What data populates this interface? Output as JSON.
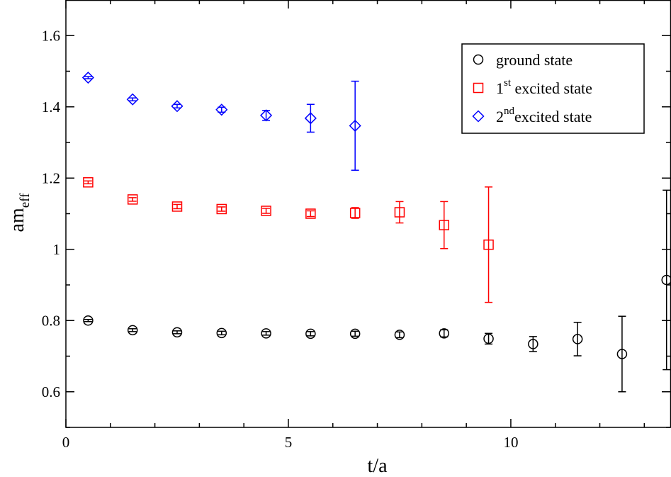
{
  "chart_data": {
    "type": "scatter",
    "xlabel": "t/a",
    "ylabel": {
      "base": "am",
      "sub": "eff"
    },
    "xlim": [
      0,
      13.6
    ],
    "ylim": [
      0.5,
      1.7
    ],
    "xticks": [
      0,
      5,
      10
    ],
    "xtick_labels": [
      "0",
      "5",
      "10"
    ],
    "yticks": [
      0.6,
      0.8,
      1.0,
      1.2,
      1.4,
      1.6
    ],
    "ytick_labels": [
      "0.6",
      "0.8",
      "1",
      "1.2",
      "1.4",
      "1.6"
    ],
    "x_minor_step": 1,
    "y_minor_step": 0.1,
    "grid": false,
    "legend_position": "top-right",
    "series": [
      {
        "name": "ground state",
        "legend": {
          "base": "ground state",
          "sup": "",
          "rest": ""
        },
        "marker": "circle",
        "color": "#000000",
        "x": [
          0.5,
          1.5,
          2.5,
          3.5,
          4.5,
          5.5,
          6.5,
          7.5,
          8.5,
          9.5,
          10.5,
          11.5,
          12.5,
          13.5
        ],
        "y": [
          0.8,
          0.773,
          0.767,
          0.765,
          0.764,
          0.763,
          0.763,
          0.76,
          0.764,
          0.749,
          0.734,
          0.748,
          0.706,
          0.914
        ],
        "err": [
          0.003,
          0.004,
          0.004,
          0.005,
          0.005,
          0.006,
          0.007,
          0.008,
          0.01,
          0.015,
          0.021,
          0.047,
          0.106,
          0.252
        ]
      },
      {
        "name": "1st excited state",
        "legend": {
          "base": "1",
          "sup": "st",
          "rest": " excited state"
        },
        "marker": "square",
        "color": "#ff0000",
        "x": [
          0.5,
          1.5,
          2.5,
          3.5,
          4.5,
          5.5,
          6.5,
          7.5,
          8.5,
          9.5
        ],
        "y": [
          1.188,
          1.14,
          1.12,
          1.113,
          1.108,
          1.1,
          1.102,
          1.104,
          1.068,
          1.013
        ],
        "err": [
          0.004,
          0.005,
          0.006,
          0.006,
          0.007,
          0.008,
          0.015,
          0.03,
          0.066,
          0.162
        ]
      },
      {
        "name": "2nd excited state",
        "legend": {
          "base": "2",
          "sup": "nd",
          "rest": "excited state"
        },
        "marker": "diamond",
        "color": "#0000ff",
        "x": [
          0.5,
          1.5,
          2.5,
          3.5,
          4.5,
          5.5,
          6.5
        ],
        "y": [
          1.482,
          1.421,
          1.402,
          1.392,
          1.376,
          1.368,
          1.347
        ],
        "err": [
          0.003,
          0.004,
          0.005,
          0.007,
          0.014,
          0.039,
          0.125
        ]
      }
    ]
  }
}
